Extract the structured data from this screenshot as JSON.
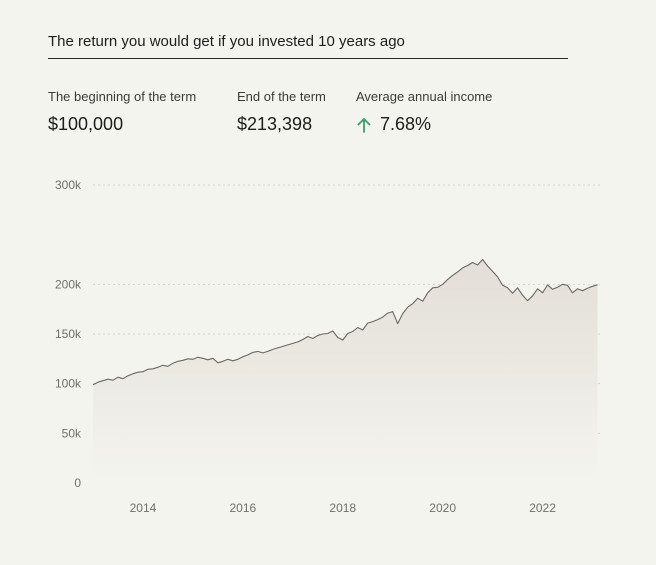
{
  "title": "The return you would get if you invested 10 years ago",
  "stats": [
    {
      "label": "The beginning of the term",
      "value": "$100,000"
    },
    {
      "label": "End of the term",
      "value": "$213,398"
    },
    {
      "label": "Average annual income",
      "value": "7.68%"
    }
  ],
  "colors": {
    "accent_up": "#3aa06a",
    "line": "#6b6864",
    "area_top": "#e3ded7",
    "grid": "#d3d3cd"
  },
  "icons": {
    "trend": "arrow-up-icon"
  },
  "chart_data": {
    "type": "area",
    "title": "",
    "xlabel": "",
    "ylabel": "",
    "ylim": [
      0,
      300000
    ],
    "xlim": [
      2013.0,
      2023.15
    ],
    "grid": true,
    "y_ticks": [
      0,
      50000,
      100000,
      150000,
      200000,
      300000
    ],
    "y_tick_labels": [
      "0",
      "50k",
      "100k",
      "150k",
      "200k",
      "300k"
    ],
    "x_ticks": [
      2014,
      2016,
      2018,
      2020,
      2022
    ],
    "x_tick_labels": [
      "2014",
      "2016",
      "2018",
      "2020",
      "2022"
    ],
    "x": [
      2013.0,
      2013.1,
      2013.2,
      2013.3,
      2013.4,
      2013.5,
      2013.6,
      2013.7,
      2013.8,
      2013.9,
      2014.0,
      2014.1,
      2014.2,
      2014.3,
      2014.4,
      2014.5,
      2014.6,
      2014.7,
      2014.8,
      2014.9,
      2015.0,
      2015.1,
      2015.2,
      2015.3,
      2015.4,
      2015.5,
      2015.6,
      2015.7,
      2015.8,
      2015.9,
      2016.0,
      2016.1,
      2016.2,
      2016.3,
      2016.4,
      2016.5,
      2016.6,
      2016.7,
      2016.8,
      2016.9,
      2017.0,
      2017.1,
      2017.2,
      2017.3,
      2017.4,
      2017.5,
      2017.6,
      2017.7,
      2017.8,
      2017.9,
      2018.0,
      2018.1,
      2018.2,
      2018.3,
      2018.4,
      2018.5,
      2018.6,
      2018.7,
      2018.8,
      2018.9,
      2019.0,
      2019.1,
      2019.2,
      2019.3,
      2019.4,
      2019.5,
      2019.6,
      2019.7,
      2019.8,
      2019.9,
      2020.0,
      2020.1,
      2020.2,
      2020.3,
      2020.4,
      2020.5,
      2020.6,
      2020.7,
      2020.8,
      2020.9,
      2021.0,
      2021.1,
      2021.2,
      2021.3,
      2021.4,
      2021.5,
      2021.6,
      2021.7,
      2021.8,
      2021.9,
      2022.0,
      2022.1,
      2022.2,
      2022.3,
      2022.4,
      2022.5,
      2022.6,
      2022.7,
      2022.8,
      2022.9,
      2023.0,
      2023.1
    ],
    "values": [
      99000,
      101500,
      103000,
      104500,
      103500,
      106500,
      105000,
      108000,
      110000,
      111500,
      112000,
      114500,
      115000,
      116500,
      118500,
      117500,
      120500,
      122500,
      123500,
      125000,
      124500,
      126500,
      125500,
      124000,
      125500,
      121000,
      122500,
      124500,
      123000,
      124500,
      127000,
      129000,
      131500,
      132500,
      131000,
      132500,
      134500,
      136000,
      137500,
      139000,
      140500,
      142000,
      144500,
      147500,
      145500,
      148500,
      150000,
      150500,
      153000,
      146500,
      144000,
      150500,
      152500,
      156500,
      154000,
      161000,
      162500,
      164500,
      167000,
      171000,
      172500,
      160500,
      170500,
      177000,
      180500,
      186000,
      183000,
      191500,
      196500,
      197000,
      200000,
      205000,
      209000,
      212500,
      216500,
      219000,
      222000,
      219500,
      225000,
      218500,
      213000,
      207500,
      199000,
      196500,
      191000,
      196500,
      189000,
      183500,
      188500,
      195500,
      191500,
      199500,
      195000,
      197000,
      200000,
      199000,
      191500,
      195500,
      193500,
      196000,
      198000,
      199500
    ],
    "series": [
      {
        "values_ref": "values"
      }
    ]
  }
}
